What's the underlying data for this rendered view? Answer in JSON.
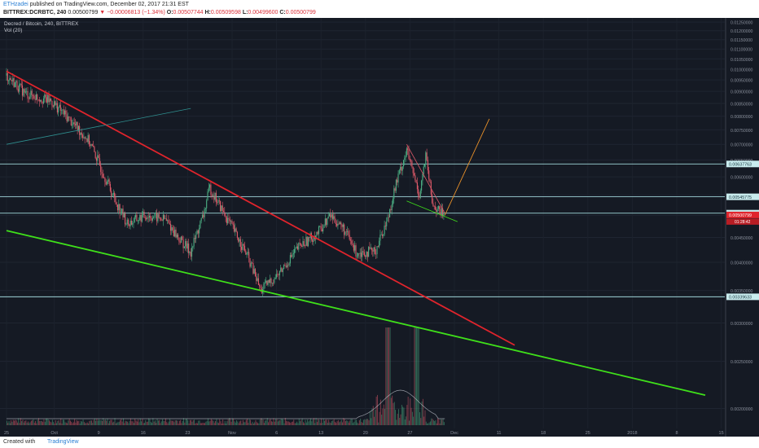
{
  "header": {
    "author": "ETHzadei",
    "published": "published on TradingView.com, December 02, 2017 21:31 EST",
    "symbol": "BITTREX:DCRBTC, 240",
    "last": "0.00500799",
    "arrow": "▼",
    "change": "−0.00006813 (−1.34%)",
    "o_label": "O:",
    "o_val": "0.00507744",
    "h_label": "H:",
    "h_val": "0.00509598",
    "l_label": "L:",
    "l_val": "0.00499600",
    "c_label": "C:",
    "c_val": "0.00500799"
  },
  "legend": {
    "title": "Decred / Bitcoin, 240, BITTREX",
    "vol": "Vol (20)"
  },
  "footer": {
    "created": "Created with",
    "brand": "TradingView"
  },
  "colors": {
    "background": "#151a24",
    "up": "#4caf84",
    "down": "#e05a6a",
    "red_trend": "#e0242c",
    "green_trend": "#3fe01a",
    "teal_line": "#2f8f8f",
    "orange_proj": "#e8902a",
    "level_line": "#9fd5d8"
  },
  "chart_data": {
    "type": "candlestick",
    "symbol": "BITTREX:DCRBTC",
    "interval": "240",
    "x_ticks": [
      "25",
      "Oct",
      "9",
      "16",
      "23",
      "Nov",
      "6",
      "13",
      "20",
      "27",
      "Dec",
      "11",
      "18",
      "25",
      "2018",
      "8",
      "15"
    ],
    "y_ticks": [
      "0.01250000",
      "0.01200000",
      "0.01150000",
      "0.01100000",
      "0.01050000",
      "0.01000000",
      "0.00950000",
      "0.00900000",
      "0.00850000",
      "0.00800000",
      "0.00750000",
      "0.00700000",
      "0.00650000",
      "0.00600000",
      "0.00550000",
      "0.00500000",
      "0.00450000",
      "0.00400000",
      "0.00350000",
      "0.00300000",
      "0.00250000",
      "0.00200000"
    ],
    "ylim": [
      0.00175,
      0.01275
    ],
    "y_scale": "log",
    "price_labels": [
      {
        "value": 0.00637763,
        "text": "0.00637763",
        "kind": "level"
      },
      {
        "value": 0.00545775,
        "text": "0.00545775",
        "kind": "level"
      },
      {
        "value": 0.00505037,
        "text": "0.00505037",
        "kind": "level"
      },
      {
        "value": 0.00500799,
        "text": "0.00500799",
        "kind": "last"
      },
      {
        "value": 0.00339633,
        "text": "0.00339633",
        "kind": "level"
      }
    ],
    "last_countdown": "01:28:42",
    "horizontal_levels": [
      0.00637763,
      0.00545775,
      0.00505037,
      0.00339633
    ],
    "price_path": [
      [
        "Sep 25",
        0.0097
      ],
      [
        "Sep 28",
        0.0089
      ],
      [
        "Oct 1",
        0.0086
      ],
      [
        "Oct 3",
        0.0081
      ],
      [
        "Oct 5",
        0.0076
      ],
      [
        "Oct 7",
        0.0071
      ],
      [
        "Oct 9",
        0.0062
      ],
      [
        "Oct 11",
        0.0054
      ],
      [
        "Oct 13",
        0.0048
      ],
      [
        "Oct 16",
        0.005
      ],
      [
        "Oct 19",
        0.0049
      ],
      [
        "Oct 21",
        0.0045
      ],
      [
        "Oct 23",
        0.0042
      ],
      [
        "Oct 25",
        0.005
      ],
      [
        "Oct 26",
        0.0057
      ],
      [
        "Oct 28",
        0.0051
      ],
      [
        "Oct 30",
        0.0046
      ],
      [
        "Nov 1",
        0.0041
      ],
      [
        "Nov 3",
        0.0035
      ],
      [
        "Nov 6",
        0.0038
      ],
      [
        "Nov 9",
        0.0043
      ],
      [
        "Nov 12",
        0.0046
      ],
      [
        "Nov 14",
        0.005
      ],
      [
        "Nov 16",
        0.0047
      ],
      [
        "Nov 18",
        0.0042
      ],
      [
        "Nov 21",
        0.0042
      ],
      [
        "Nov 23",
        0.0049
      ],
      [
        "Nov 24",
        0.0056
      ],
      [
        "Nov 26",
        0.0068
      ],
      [
        "Nov 27",
        0.0061
      ],
      [
        "Nov 28",
        0.0055
      ],
      [
        "Nov 29",
        0.0066
      ],
      [
        "Nov 30",
        0.0053
      ],
      [
        "Dec 1",
        0.0051
      ],
      [
        "Dec 2",
        0.00501
      ]
    ],
    "trendlines": [
      {
        "name": "red-downtrend",
        "from": [
          "Sep 25",
          0.0099
        ],
        "to": [
          "Dec 13",
          0.0027
        ]
      },
      {
        "name": "green-support",
        "from": [
          "Sep 25",
          0.00465
        ],
        "to": [
          "Jan 12",
          0.00213
        ]
      },
      {
        "name": "teal-line",
        "from": [
          "Sep 25",
          0.007
        ],
        "to": [
          "Oct 23",
          0.0083
        ]
      },
      {
        "name": "wedge-upper",
        "from": [
          "Nov 26",
          0.007
        ],
        "to": [
          "Dec 2",
          0.00505
        ]
      },
      {
        "name": "wedge-lower",
        "from": [
          "Nov 26",
          0.00535
        ],
        "to": [
          "Dec 4",
          0.00485
        ]
      },
      {
        "name": "projection",
        "from": [
          "Dec 2",
          0.005
        ],
        "to": [
          "Dec 9",
          0.0079
        ]
      }
    ]
  }
}
